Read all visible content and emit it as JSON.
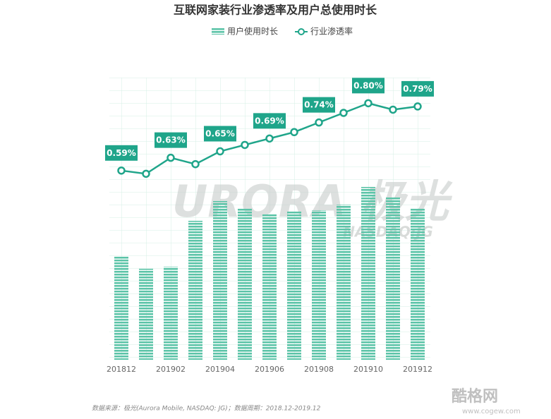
{
  "chart_data": {
    "type": "bar-line",
    "title": "互联网家装行业渗透率及用户总使用时长",
    "categories": [
      "201812",
      null,
      "201902",
      null,
      "201904",
      null,
      "201906",
      null,
      "201908",
      null,
      "201910",
      null,
      "201912"
    ],
    "series": [
      {
        "name": "用户使用时长",
        "type": "bar",
        "color": "#5cc4a8",
        "values": [
          147,
          129,
          132,
          197,
          225,
          215,
          207,
          210,
          212,
          220,
          245,
          230,
          215
        ]
      },
      {
        "name": "行业渗透率",
        "type": "line",
        "axis": "y2",
        "color": "#1fa58a",
        "values": [
          0.59,
          0.58,
          0.63,
          0.61,
          0.65,
          0.67,
          0.69,
          0.71,
          0.74,
          0.77,
          0.8,
          0.78,
          0.79
        ],
        "value_labels": [
          "0.59%",
          null,
          "0.63%",
          null,
          "0.65%",
          null,
          "0.69%",
          null,
          "0.74%",
          null,
          "0.80%",
          null,
          "0.79%"
        ]
      }
    ],
    "ylim": [
      0,
      400
    ],
    "y2lim": [
      0,
      0.88
    ],
    "watermark": "URORA 极光",
    "watermark_sub": "NASDAQ:JG",
    "source": "数据来源：极光(Aurora Mobile, NASDAQ: JG)；数据周期：2018.12-2019.12",
    "site_logo": "酷格网",
    "site_url": "www.cogew.com"
  }
}
